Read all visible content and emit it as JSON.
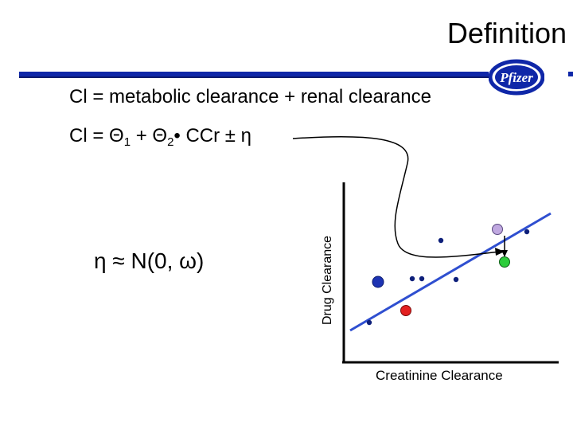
{
  "slide": {
    "title": "Definition",
    "eq_total": "Cl = metabolic clearance + renal clearance",
    "eq_model": {
      "prefix": "Cl = ",
      "theta1": "Θ",
      "sub1": "1",
      "plus": " + ",
      "theta2": "Θ",
      "sub2": "2",
      "ccr": "• CCr  ±",
      "eta": "η"
    },
    "eta_dist": "η  ≈  N(0, ω)",
    "logo_text": "Pfizer"
  },
  "chart_data": {
    "type": "scatter",
    "xlabel": "Creatinine Clearance",
    "ylabel": "Drug Clearance",
    "colors": {
      "axis": "#000000",
      "fit_line": "#2f4fd0",
      "point": "#0d1f7a",
      "highlight_blue": "#1d33b3",
      "highlight_red": "#e32020",
      "highlight_lavender": "#c0a8e0",
      "highlight_green": "#2bcc3a"
    }
  }
}
